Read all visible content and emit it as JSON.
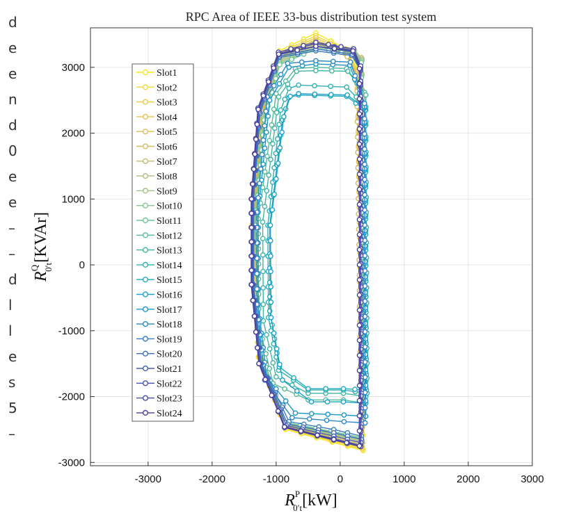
{
  "page_side_text": [
    "d",
    "e",
    "e",
    "n",
    "d",
    "0",
    "e",
    "e",
    "–",
    "–",
    "d",
    "l",
    "l",
    "e",
    "s",
    "5",
    "–"
  ],
  "chart_data": {
    "type": "line",
    "title": "RPC Area of IEEE 33-bus distribution test system",
    "xlabel_main": "R",
    "xlabel_sup": "P",
    "xlabel_sub": "0′t",
    "xlabel_unit": "[kW]",
    "ylabel_main": "R",
    "ylabel_sup": "Q",
    "ylabel_sub": "0′t",
    "ylabel_unit": "[KVAr]",
    "xlim": [
      -3900,
      3000
    ],
    "ylim": [
      -3050,
      3600
    ],
    "xticks": [
      -3000,
      -2000,
      -1000,
      0,
      1000,
      2000,
      3000
    ],
    "yticks": [
      -3000,
      -2000,
      -1000,
      0,
      1000,
      2000,
      3000
    ],
    "grid": true,
    "legend_position": "upper-left",
    "series": [
      {
        "name": "Slot1",
        "color": "#f5e61e",
        "vertices": [
          [
            -380,
            3520
          ],
          [
            90,
            3280
          ],
          [
            280,
            2980
          ],
          [
            360,
            -2820
          ],
          [
            -850,
            -2500
          ],
          [
            -1280,
            -1400
          ],
          [
            -1380,
            600
          ],
          [
            -1240,
            2400
          ],
          [
            -950,
            3250
          ]
        ]
      },
      {
        "name": "Slot2",
        "color": "#f3d83a",
        "vertices": [
          [
            -380,
            3480
          ],
          [
            90,
            3250
          ],
          [
            270,
            2960
          ],
          [
            350,
            -2800
          ],
          [
            -860,
            -2480
          ],
          [
            -1270,
            -1400
          ],
          [
            -1370,
            600
          ],
          [
            -1235,
            2380
          ],
          [
            -950,
            3220
          ]
        ]
      },
      {
        "name": "Slot3",
        "color": "#eccc47",
        "vertices": [
          [
            -380,
            3450
          ],
          [
            100,
            3220
          ],
          [
            270,
            2930
          ],
          [
            345,
            -2780
          ],
          [
            -860,
            -2470
          ],
          [
            -1265,
            -1390
          ],
          [
            -1365,
            600
          ],
          [
            -1230,
            2360
          ],
          [
            -950,
            3200
          ]
        ]
      },
      {
        "name": "Slot4",
        "color": "#e4c44e",
        "vertices": [
          [
            -380,
            3420
          ],
          [
            100,
            3200
          ],
          [
            265,
            2900
          ],
          [
            340,
            -2760
          ],
          [
            -860,
            -2460
          ],
          [
            -1260,
            -1380
          ],
          [
            -1360,
            600
          ],
          [
            -1225,
            2340
          ],
          [
            -950,
            3180
          ]
        ]
      },
      {
        "name": "Slot5",
        "color": "#dcbd58",
        "vertices": [
          [
            -380,
            3400
          ],
          [
            110,
            3180
          ],
          [
            265,
            2880
          ],
          [
            335,
            -2740
          ],
          [
            -860,
            -2450
          ],
          [
            -1255,
            -1380
          ],
          [
            -1355,
            600
          ],
          [
            -1220,
            2320
          ],
          [
            -945,
            3160
          ]
        ]
      },
      {
        "name": "Slot6",
        "color": "#d2bb63",
        "vertices": [
          [
            -380,
            3380
          ],
          [
            110,
            3160
          ],
          [
            260,
            2870
          ],
          [
            330,
            -2720
          ],
          [
            -860,
            -2440
          ],
          [
            -1250,
            -1370
          ],
          [
            -1350,
            600
          ],
          [
            -1215,
            2300
          ],
          [
            -945,
            3140
          ]
        ]
      },
      {
        "name": "Slot7",
        "color": "#c3bb70",
        "vertices": [
          [
            -380,
            3360
          ],
          [
            200,
            3280
          ],
          [
            330,
            3150
          ],
          [
            350,
            -2700
          ],
          [
            -860,
            -2430
          ],
          [
            -1245,
            -1370
          ],
          [
            -1345,
            600
          ],
          [
            -1210,
            2280
          ],
          [
            -945,
            3120
          ]
        ]
      },
      {
        "name": "Slot8",
        "color": "#b1bc7c",
        "vertices": [
          [
            -380,
            3340
          ],
          [
            220,
            3260
          ],
          [
            340,
            3130
          ],
          [
            345,
            -2680
          ],
          [
            -860,
            -2420
          ],
          [
            -1240,
            -1360
          ],
          [
            -1340,
            600
          ],
          [
            -1205,
            2260
          ],
          [
            -945,
            3100
          ]
        ]
      },
      {
        "name": "Slot9",
        "color": "#9ec387",
        "vertices": [
          [
            -380,
            3320
          ],
          [
            220,
            3240
          ],
          [
            340,
            3110
          ],
          [
            340,
            -2660
          ],
          [
            -860,
            -2410
          ],
          [
            -1235,
            -1360
          ],
          [
            -1335,
            600
          ],
          [
            -1200,
            2240
          ],
          [
            -945,
            3080
          ]
        ]
      },
      {
        "name": "Slot10",
        "color": "#88c48f",
        "vertices": [
          [
            -380,
            3300
          ],
          [
            220,
            3220
          ],
          [
            335,
            3090
          ],
          [
            335,
            -2640
          ],
          [
            -860,
            -2400
          ],
          [
            -1230,
            -1350
          ],
          [
            -1330,
            600
          ],
          [
            -1195,
            2220
          ],
          [
            -945,
            3060
          ]
        ]
      },
      {
        "name": "Slot11",
        "color": "#6fc394",
        "vertices": [
          [
            -380,
            3280
          ],
          [
            220,
            3200
          ],
          [
            330,
            3070
          ],
          [
            330,
            -2620
          ],
          [
            -860,
            -2390
          ],
          [
            -1225,
            -1350
          ],
          [
            -1325,
            600
          ],
          [
            -1190,
            2200
          ],
          [
            -945,
            3040
          ]
        ]
      },
      {
        "name": "Slot12",
        "color": "#56bc9a",
        "vertices": [
          [
            -380,
            3000
          ],
          [
            100,
            2980
          ],
          [
            380,
            2620
          ],
          [
            380,
            -2100
          ],
          [
            50,
            -2050
          ],
          [
            -500,
            -2050
          ],
          [
            -1050,
            -1800
          ],
          [
            -1270,
            -900
          ],
          [
            -1280,
            700
          ],
          [
            -1000,
            2600
          ],
          [
            -700,
            2980
          ]
        ]
      },
      {
        "name": "Slot13",
        "color": "#40b5a3",
        "vertices": [
          [
            -380,
            2950
          ],
          [
            120,
            2940
          ],
          [
            400,
            2580
          ],
          [
            400,
            -2000
          ],
          [
            50,
            -1950
          ],
          [
            -500,
            -1950
          ],
          [
            -1000,
            -1700
          ],
          [
            -1200,
            -850
          ],
          [
            -1210,
            650
          ],
          [
            -960,
            2550
          ],
          [
            -680,
            2940
          ]
        ]
      },
      {
        "name": "Slot14",
        "color": "#30b0b0",
        "vertices": [
          [
            -650,
            2730
          ],
          [
            100,
            2700
          ],
          [
            400,
            2400
          ],
          [
            420,
            -1950
          ],
          [
            50,
            -1900
          ],
          [
            -500,
            -1900
          ],
          [
            -960,
            -1600
          ],
          [
            -1120,
            -800
          ],
          [
            -1130,
            600
          ],
          [
            -930,
            2350
          ],
          [
            -800,
            2680
          ]
        ]
      },
      {
        "name": "Slot15",
        "color": "#20aac0",
        "vertices": [
          [
            -650,
            2580
          ],
          [
            100,
            2560
          ],
          [
            390,
            2350
          ],
          [
            410,
            -1900
          ],
          [
            50,
            -1880
          ],
          [
            -500,
            -1880
          ],
          [
            -950,
            -1550
          ],
          [
            -1100,
            -700
          ],
          [
            -1100,
            600
          ],
          [
            -900,
            2200
          ],
          [
            -800,
            2540
          ]
        ]
      },
      {
        "name": "Slot16",
        "color": "#1ba1c9",
        "vertices": [
          [
            -650,
            2600
          ],
          [
            110,
            2580
          ],
          [
            380,
            2380
          ],
          [
            400,
            -2100
          ],
          [
            50,
            -2080
          ],
          [
            -450,
            -2080
          ],
          [
            -900,
            -1750
          ],
          [
            -1080,
            -800
          ],
          [
            -1090,
            600
          ],
          [
            -880,
            2250
          ],
          [
            -780,
            2560
          ]
        ]
      },
      {
        "name": "Slot17",
        "color": "#1995cb",
        "vertices": [
          [
            -380,
            3050
          ],
          [
            150,
            3030
          ],
          [
            380,
            2400
          ],
          [
            400,
            -2300
          ],
          [
            60,
            -2280
          ],
          [
            -700,
            -2250
          ],
          [
            -1150,
            -1700
          ],
          [
            -1280,
            -600
          ],
          [
            -1280,
            800
          ],
          [
            -1100,
            2500
          ],
          [
            -800,
            3000
          ]
        ]
      },
      {
        "name": "Slot18",
        "color": "#2a88c6",
        "vertices": [
          [
            -380,
            3100
          ],
          [
            160,
            3080
          ],
          [
            380,
            2450
          ],
          [
            390,
            -2400
          ],
          [
            60,
            -2380
          ],
          [
            -750,
            -2320
          ],
          [
            -1180,
            -1750
          ],
          [
            -1300,
            -600
          ],
          [
            -1300,
            800
          ],
          [
            -1140,
            2550
          ],
          [
            -820,
            3060
          ]
        ]
      },
      {
        "name": "Slot19",
        "color": "#387bc0",
        "vertices": [
          [
            -380,
            3250
          ],
          [
            180,
            3180
          ],
          [
            320,
            2950
          ],
          [
            330,
            -2600
          ],
          [
            -100,
            -2500
          ],
          [
            -800,
            -2380
          ],
          [
            -1230,
            -1500
          ],
          [
            -1350,
            -300
          ],
          [
            -1350,
            1000
          ],
          [
            -1250,
            2300
          ],
          [
            -950,
            3150
          ]
        ]
      },
      {
        "name": "Slot20",
        "color": "#3f6ebb",
        "vertices": [
          [
            -380,
            3280
          ],
          [
            190,
            3200
          ],
          [
            320,
            2960
          ],
          [
            330,
            -2650
          ],
          [
            -100,
            -2550
          ],
          [
            -820,
            -2420
          ],
          [
            -1240,
            -1500
          ],
          [
            -1360,
            -300
          ],
          [
            -1360,
            1000
          ],
          [
            -1260,
            2320
          ],
          [
            -950,
            3170
          ]
        ]
      },
      {
        "name": "Slot21",
        "color": "#4361b3",
        "vertices": [
          [
            -380,
            3320
          ],
          [
            200,
            3230
          ],
          [
            320,
            2980
          ],
          [
            325,
            -2700
          ],
          [
            -100,
            -2600
          ],
          [
            -840,
            -2440
          ],
          [
            -1250,
            -1500
          ],
          [
            -1370,
            -300
          ],
          [
            -1370,
            1000
          ],
          [
            -1270,
            2340
          ],
          [
            -960,
            3190
          ]
        ]
      },
      {
        "name": "Slot22",
        "color": "#4655ab",
        "vertices": [
          [
            -380,
            3360
          ],
          [
            200,
            3260
          ],
          [
            320,
            3000
          ],
          [
            320,
            -2740
          ],
          [
            -100,
            -2640
          ],
          [
            -860,
            -2460
          ],
          [
            -1260,
            -1500
          ],
          [
            -1380,
            -300
          ],
          [
            -1380,
            1000
          ],
          [
            -1280,
            2360
          ],
          [
            -960,
            3210
          ]
        ]
      },
      {
        "name": "Slot23",
        "color": "#484aa3",
        "vertices": [
          [
            -380,
            3380
          ],
          [
            210,
            3280
          ],
          [
            320,
            3020
          ],
          [
            320,
            -2760
          ],
          [
            -100,
            -2660
          ],
          [
            -870,
            -2470
          ],
          [
            -1270,
            -1500
          ],
          [
            -1390,
            -300
          ],
          [
            -1390,
            1000
          ],
          [
            -1285,
            2380
          ],
          [
            -965,
            3230
          ]
        ]
      },
      {
        "name": "Slot24",
        "color": "#48409c",
        "vertices": [
          [
            -380,
            3320
          ],
          [
            200,
            3250
          ],
          [
            300,
            2980
          ],
          [
            300,
            -2750
          ],
          [
            -100,
            -2650
          ],
          [
            -870,
            -2460
          ],
          [
            -1270,
            -1500
          ],
          [
            -1385,
            -300
          ],
          [
            -1385,
            1000
          ],
          [
            -1280,
            2360
          ],
          [
            -960,
            3200
          ]
        ]
      }
    ]
  }
}
